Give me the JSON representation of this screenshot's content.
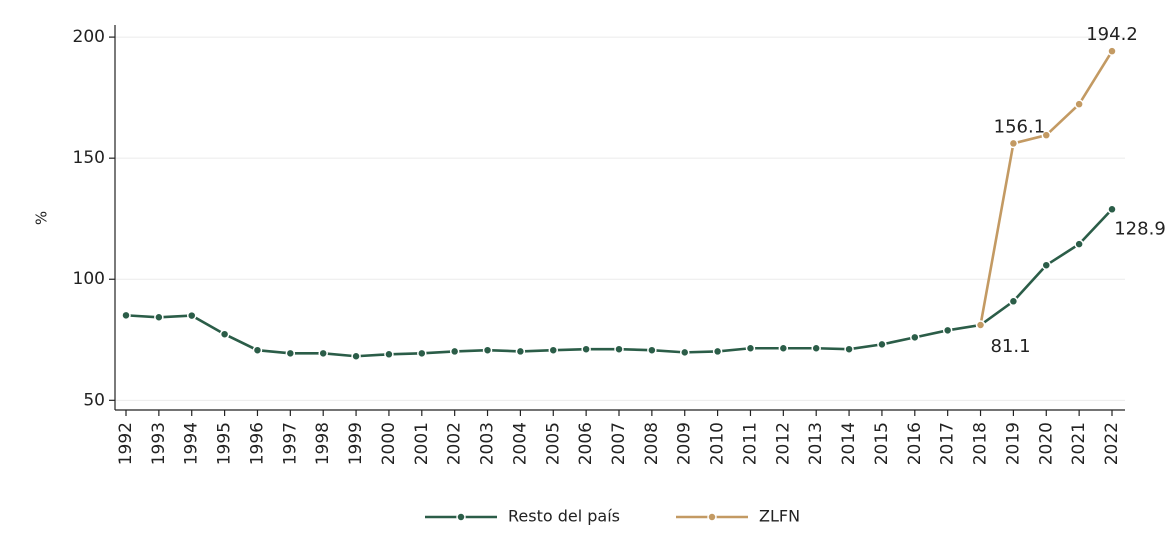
{
  "chart_data": {
    "type": "line",
    "y_label": "%",
    "categories": [
      "1992",
      "1993",
      "1994",
      "1995",
      "1996",
      "1997",
      "1998",
      "1999",
      "2000",
      "2001",
      "2002",
      "2003",
      "2004",
      "2005",
      "2006",
      "2007",
      "2008",
      "2009",
      "2010",
      "2011",
      "2012",
      "2013",
      "2014",
      "2015",
      "2016",
      "2017",
      "2018",
      "2019",
      "2020",
      "2021",
      "2022"
    ],
    "series": [
      {
        "name": "Resto del país",
        "color": "#2b5d48",
        "values": [
          85.1,
          84.3,
          85.0,
          77.3,
          70.7,
          69.4,
          69.4,
          68.2,
          69.0,
          69.4,
          70.2,
          70.7,
          70.2,
          70.7,
          71.1,
          71.1,
          70.7,
          69.8,
          70.2,
          71.5,
          71.5,
          71.5,
          71.1,
          73.1,
          76.0,
          78.9,
          81.1,
          90.9,
          105.8,
          114.5,
          128.9
        ]
      },
      {
        "name": "ZLFN",
        "color": "#c39a63",
        "values": [
          null,
          null,
          null,
          null,
          null,
          null,
          null,
          null,
          null,
          null,
          null,
          null,
          null,
          null,
          null,
          null,
          null,
          null,
          null,
          null,
          null,
          null,
          null,
          null,
          null,
          null,
          81.1,
          156.1,
          159.5,
          172.3,
          194.2
        ]
      }
    ],
    "ylim": [
      46,
      205
    ],
    "yticks": [
      50,
      100,
      150,
      200
    ],
    "grid": true,
    "legend": "bottom"
  }
}
